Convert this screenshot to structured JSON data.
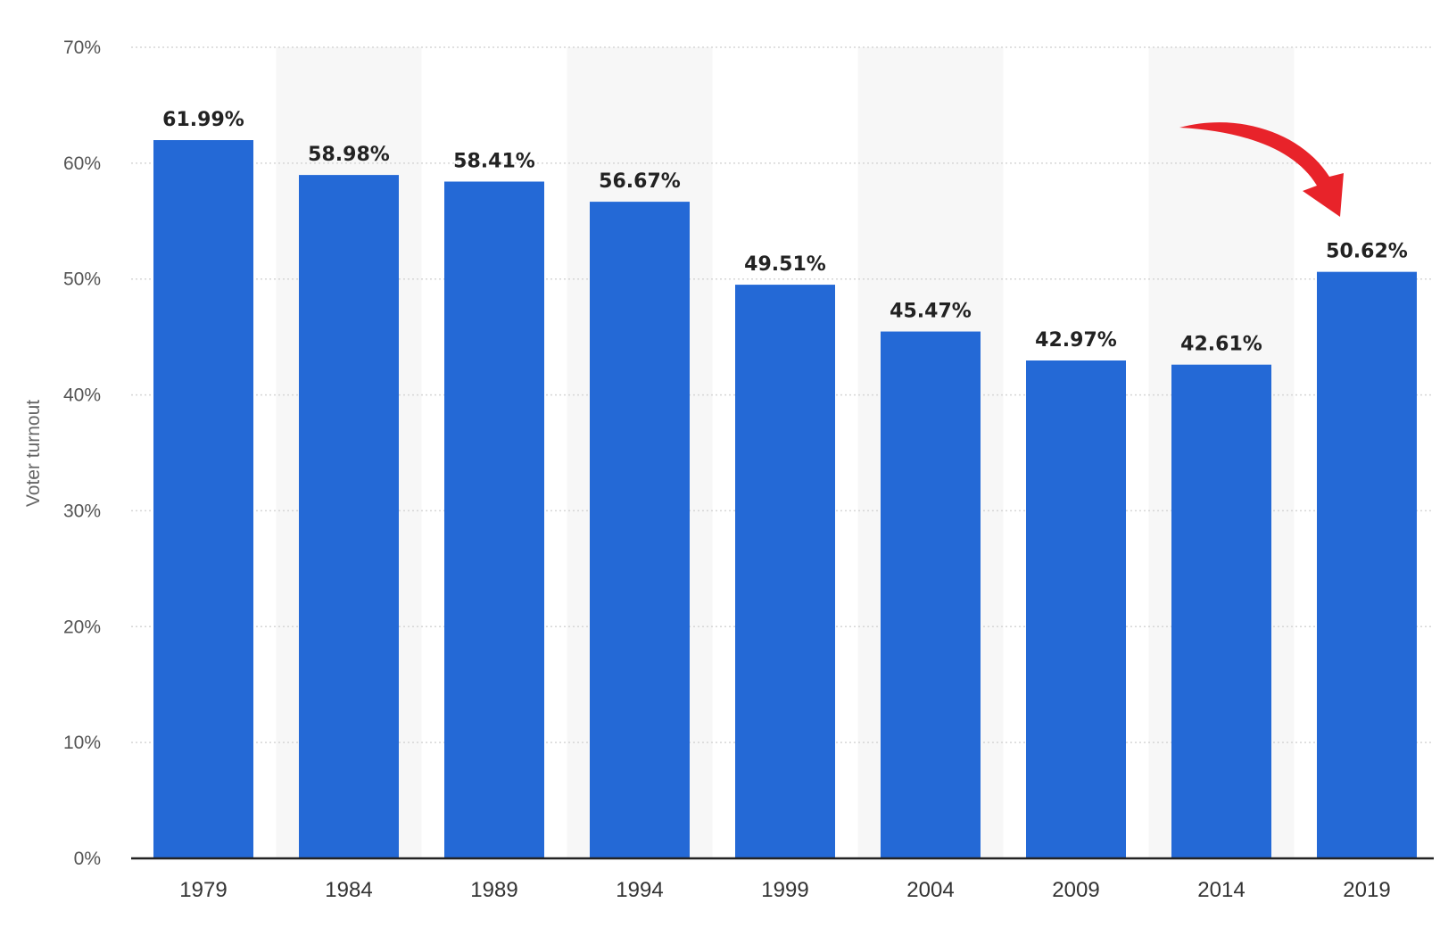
{
  "chart_data": {
    "type": "bar",
    "title": "",
    "xlabel": "",
    "ylabel": "Voter turnout",
    "categories": [
      "1979",
      "1984",
      "1989",
      "1994",
      "1999",
      "2004",
      "2009",
      "2014",
      "2019"
    ],
    "values": [
      61.99,
      58.98,
      58.41,
      56.67,
      49.51,
      45.47,
      42.97,
      42.61,
      50.62
    ],
    "data_labels": [
      "61.99%",
      "58.98%",
      "58.41%",
      "56.67%",
      "49.51%",
      "45.47%",
      "42.97%",
      "42.61%",
      "50.62%"
    ],
    "ylim": [
      0,
      70
    ],
    "yticks": [
      0,
      10,
      20,
      30,
      40,
      50,
      60,
      70
    ],
    "ytick_labels": [
      "0%",
      "10%",
      "20%",
      "30%",
      "40%",
      "50%",
      "60%",
      "70%"
    ],
    "grid": true,
    "bar_color": "#2469d6",
    "band_color": "#f7f7f7",
    "annotation": {
      "type": "arrow",
      "color": "#e8232a",
      "target_category": "2019"
    }
  }
}
